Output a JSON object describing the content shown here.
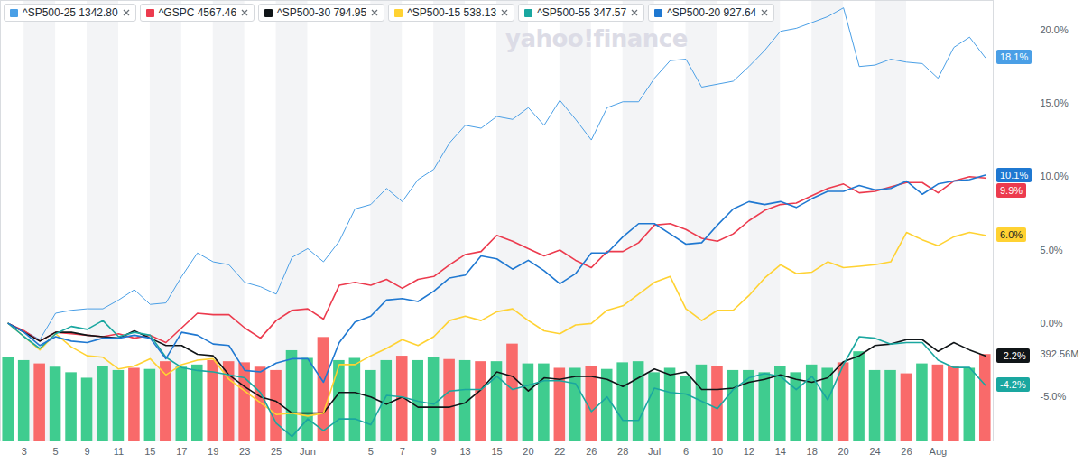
{
  "chart_data": {
    "type": "line",
    "watermark": "yahoo!finance",
    "legend": "top-left",
    "grid": true,
    "categories": [
      null,
      "3",
      null,
      "5",
      null,
      "9",
      null,
      "11",
      null,
      "15",
      null,
      "17",
      null,
      "19",
      null,
      "23",
      null,
      "25",
      null,
      "Jun",
      null,
      null,
      null,
      "5",
      null,
      "7",
      null,
      "9",
      null,
      "13",
      null,
      "15",
      null,
      "20",
      null,
      "22",
      null,
      "26",
      null,
      "28",
      null,
      "Jul",
      null,
      "6",
      null,
      "10",
      null,
      "12",
      null,
      "14",
      null,
      "18",
      null,
      "20",
      null,
      "24",
      null,
      "26",
      null,
      "Aug",
      null,
      null,
      null
    ],
    "ylim": [
      -8,
      22
    ],
    "yticks": [
      {
        "value": -5,
        "label": "-5.0%"
      },
      {
        "value": 0,
        "label": "0.0%"
      },
      {
        "value": 5,
        "label": "5.0%"
      },
      {
        "value": 10,
        "label": "10.0%"
      },
      {
        "value": 15,
        "label": "15.0%"
      },
      {
        "value": 20,
        "label": "20.0%"
      }
    ],
    "y2lim": [
      0,
      2000
    ],
    "y2ticks": [
      {
        "value": 392.56,
        "label": "392.56M"
      }
    ],
    "series": [
      {
        "name": "^SP500-25",
        "price": {
          "value": 1342.8,
          "label": "1342.80"
        },
        "color": "#4a9fe6",
        "end_label": "18.1%",
        "values": [
          0,
          -0.5,
          -1.1,
          0.7,
          0.9,
          1.0,
          1.0,
          1.6,
          2.3,
          1.3,
          1.4,
          3.2,
          4.8,
          4.2,
          4.0,
          2.8,
          2.5,
          2.0,
          4.5,
          5.1,
          4.2,
          5.6,
          7.8,
          8.1,
          9.2,
          8.3,
          9.8,
          10.5,
          12.3,
          13.5,
          13.3,
          14.1,
          13.9,
          14.7,
          13.5,
          15.2,
          13.9,
          12.5,
          14.7,
          15.1,
          15.1,
          16.7,
          17.9,
          18.0,
          16.1,
          16.3,
          16.5,
          17.5,
          18.6,
          19.9,
          20.1,
          20.5,
          20.9,
          21.5,
          17.5,
          17.6,
          18.0,
          17.8,
          17.7,
          16.7,
          18.8,
          19.5,
          18.1
        ]
      },
      {
        "name": "^GSPC",
        "price": {
          "value": 4567.46,
          "label": "4567.46"
        },
        "color": "#ec3b4e",
        "end_label": "9.9%",
        "values": [
          0,
          -0.5,
          -1.2,
          -0.6,
          -0.7,
          -0.8,
          -0.9,
          -0.7,
          -1.0,
          -0.8,
          -1.3,
          -0.3,
          0.7,
          0.6,
          0.6,
          -0.3,
          -1.0,
          0.2,
          0.9,
          1.0,
          0.3,
          2.6,
          2.8,
          2.6,
          3.0,
          2.4,
          3.0,
          3.2,
          4.0,
          4.7,
          4.9,
          6.0,
          5.6,
          5.1,
          4.6,
          5.0,
          4.3,
          3.8,
          4.9,
          4.9,
          5.5,
          6.7,
          6.8,
          6.4,
          5.8,
          5.6,
          6.1,
          7.0,
          7.7,
          8.1,
          8.2,
          8.7,
          9.2,
          9.5,
          8.9,
          9.0,
          9.3,
          9.6,
          9.6,
          8.9,
          9.7,
          10.0,
          9.9
        ]
      },
      {
        "name": "^SP500-30",
        "price": {
          "value": 794.95,
          "label": "794.95"
        },
        "color": "#101518",
        "end_label": "-2.2%",
        "values": [
          0,
          -0.6,
          -1.2,
          -0.6,
          -0.6,
          -0.8,
          -0.9,
          -1.0,
          -0.5,
          -1.0,
          -1.5,
          -1.5,
          -2.1,
          -2.2,
          -3.5,
          -4.3,
          -5.0,
          -5.3,
          -6.1,
          -6.1,
          -6.1,
          -4.7,
          -4.7,
          -5.0,
          -5.5,
          -5.0,
          -5.7,
          -5.7,
          -5.7,
          -5.4,
          -4.5,
          -3.3,
          -3.6,
          -4.6,
          -3.7,
          -3.8,
          -3.6,
          -3.6,
          -3.8,
          -4.3,
          -3.7,
          -3.1,
          -3.5,
          -3.3,
          -4.5,
          -4.5,
          -4.4,
          -4.0,
          -3.8,
          -3.5,
          -3.8,
          -4.0,
          -3.7,
          -2.6,
          -2.2,
          -1.5,
          -1.4,
          -1.1,
          -1.1,
          -1.9,
          -1.3,
          -1.8,
          -2.2
        ]
      },
      {
        "name": "^SP500-15",
        "price": {
          "value": 538.13,
          "label": "538.13"
        },
        "color": "#ffd232",
        "end_label": "6.0%",
        "values": [
          0,
          -0.9,
          -1.8,
          -0.7,
          -1.6,
          -2.2,
          -2.3,
          -3.1,
          -2.9,
          -2.4,
          -3.5,
          -2.8,
          -2.5,
          -2.4,
          -3.8,
          -4.6,
          -5.4,
          -6.2,
          -6.1,
          -6.3,
          -6.1,
          -2.8,
          -2.8,
          -2.2,
          -1.7,
          -1.1,
          -1.5,
          -0.9,
          0.2,
          0.5,
          0.2,
          0.8,
          1.0,
          0.2,
          -0.5,
          -0.7,
          -0.1,
          0.0,
          0.9,
          1.2,
          2.0,
          2.8,
          3.2,
          1.0,
          0.2,
          0.9,
          0.9,
          1.9,
          3.1,
          4.0,
          3.4,
          3.5,
          4.2,
          3.8,
          3.9,
          4.0,
          4.2,
          6.2,
          5.7,
          5.3,
          5.9,
          6.2,
          6.0
        ]
      },
      {
        "name": "^SP500-55",
        "price": {
          "value": 347.57,
          "label": "347.57"
        },
        "color": "#1aa7a0",
        "end_label": "-4.2%",
        "values": [
          0,
          -0.9,
          -1.7,
          -0.7,
          -0.2,
          -0.4,
          0.2,
          -0.9,
          -0.6,
          -0.8,
          -2.3,
          -3.0,
          -3.2,
          -3.3,
          -3.5,
          -3.7,
          -4.7,
          -6.8,
          -7.7,
          -6.5,
          -7.3,
          -6.5,
          -6.5,
          -6.9,
          -4.9,
          -5.0,
          -5.3,
          -5.5,
          -4.6,
          -4.5,
          -4.5,
          -3.6,
          -4.5,
          -4.2,
          -3.9,
          -3.9,
          -4.1,
          -6.0,
          -5.0,
          -6.6,
          -6.6,
          -4.4,
          -4.7,
          -4.8,
          -5.3,
          -5.8,
          -4.5,
          -3.7,
          -3.4,
          -3.6,
          -4.5,
          -3.6,
          -5.2,
          -2.8,
          -0.9,
          -1.0,
          -1.4,
          -1.3,
          -1.3,
          -2.5,
          -3.0,
          -3.0,
          -4.2
        ]
      },
      {
        "name": "^SP500-20",
        "price": {
          "value": 927.64,
          "label": "927.64"
        },
        "color": "#1f78d1",
        "end_label": "10.1%",
        "values": [
          0,
          -0.6,
          -1.5,
          -0.9,
          -1.2,
          -1.3,
          -1.0,
          -1.0,
          -0.8,
          -1.0,
          -2.4,
          -0.6,
          -0.8,
          -1.4,
          -1.5,
          -3.2,
          -3.3,
          -2.7,
          -2.4,
          -2.4,
          -4.0,
          -1.3,
          0.1,
          0.5,
          1.6,
          1.7,
          1.5,
          2.2,
          3.1,
          3.3,
          4.6,
          4.4,
          3.7,
          4.3,
          3.6,
          2.7,
          3.4,
          4.8,
          4.8,
          5.9,
          6.8,
          6.8,
          6.1,
          5.4,
          5.5,
          6.7,
          7.8,
          8.3,
          8.1,
          8.3,
          7.9,
          8.5,
          9.0,
          9.0,
          9.4,
          9.1,
          9.2,
          9.7,
          8.8,
          9.5,
          9.7,
          9.8,
          10.1
        ]
      }
    ],
    "volume": {
      "type": "bar",
      "axis": "y2",
      "values": [
        380,
        365,
        350,
        335,
        310,
        285,
        340,
        320,
        330,
        325,
        360,
        335,
        345,
        365,
        360,
        355,
        335,
        320,
        410,
        375,
        470,
        365,
        375,
        320,
        365,
        385,
        365,
        380,
        370,
        365,
        360,
        360,
        440,
        350,
        350,
        330,
        330,
        340,
        325,
        355,
        360,
        310,
        330,
        295,
        345,
        340,
        320,
        320,
        310,
        340,
        310,
        345,
        330,
        355,
        405,
        320,
        320,
        305,
        350,
        345,
        340,
        330,
        392.56
      ],
      "colors": [
        "#3fcc8f",
        "#3fcc8f",
        "#f96a6a",
        "#3fcc8f",
        "#3fcc8f",
        "#3fcc8f",
        "#3fcc8f",
        "#3fcc8f",
        "#f96a6a",
        "#3fcc8f",
        "#f96a6a",
        "#3fcc8f",
        "#3fcc8f",
        "#f96a6a",
        "#f96a6a",
        "#f96a6a",
        "#f96a6a",
        "#f96a6a",
        "#3fcc8f",
        "#3fcc8f",
        "#f96a6a",
        "#3fcc8f",
        "#3fcc8f",
        "#3fcc8f",
        "#3fcc8f",
        "#f96a6a",
        "#3fcc8f",
        "#3fcc8f",
        "#f96a6a",
        "#3fcc8f",
        "#f96a6a",
        "#3fcc8f",
        "#f96a6a",
        "#3fcc8f",
        "#3fcc8f",
        "#f96a6a",
        "#3fcc8f",
        "#f96a6a",
        "#3fcc8f",
        "#3fcc8f",
        "#3fcc8f",
        "#3fcc8f",
        "#3fcc8f",
        "#3fcc8f",
        "#3fcc8f",
        "#f96a6a",
        "#3fcc8f",
        "#3fcc8f",
        "#3fcc8f",
        "#3fcc8f",
        "#3fcc8f",
        "#3fcc8f",
        "#3fcc8f",
        "#f96a6a",
        "#3fcc8f",
        "#3fcc8f",
        "#3fcc8f",
        "#f96a6a",
        "#3fcc8f",
        "#f96a6a",
        "#f96a6a",
        "#3fcc8f",
        "#f96a6a"
      ]
    }
  }
}
